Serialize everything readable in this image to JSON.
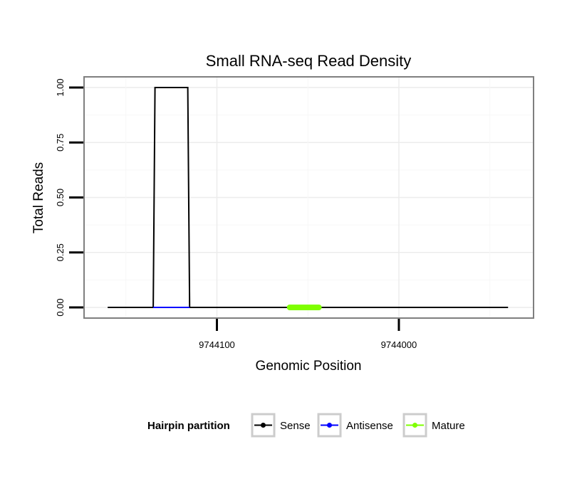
{
  "chart_data": {
    "type": "line",
    "title": "Small RNA-seq Read Density",
    "xlabel": "Genomic Position",
    "ylabel": "Total Reads",
    "x_reversed": true,
    "xlim": [
      9744173,
      9743926
    ],
    "ylim": [
      0.0,
      1.0
    ],
    "x_ticks": [
      9744100,
      9744000
    ],
    "x_tick_labels": [
      "9744100",
      "9744000"
    ],
    "y_ticks": [
      0.0,
      0.25,
      0.5,
      0.75,
      1.0
    ],
    "y_tick_labels": [
      "0.00",
      "0.25",
      "0.50",
      "0.75",
      "1.00"
    ],
    "grid": true,
    "legend": {
      "title": "Hairpin partition",
      "position": "bottom",
      "entries": [
        {
          "label": "Sense",
          "color": "#000000"
        },
        {
          "label": "Antisense",
          "color": "#0000ff"
        },
        {
          "label": "Mature",
          "color": "#7fff00"
        }
      ]
    },
    "series": [
      {
        "name": "Sense",
        "color": "#000000",
        "x": [
          9744160,
          9744135,
          9744134,
          9744116,
          9744115,
          9743940
        ],
        "y": [
          0,
          0,
          1,
          1,
          0,
          0
        ]
      },
      {
        "name": "Antisense",
        "color": "#0000ff",
        "x": [
          9744135,
          9744115
        ],
        "y": [
          0,
          0
        ]
      },
      {
        "name": "Mature",
        "color": "#7fff00",
        "x": [
          9744060,
          9744044
        ],
        "y": [
          0,
          0
        ]
      }
    ]
  }
}
